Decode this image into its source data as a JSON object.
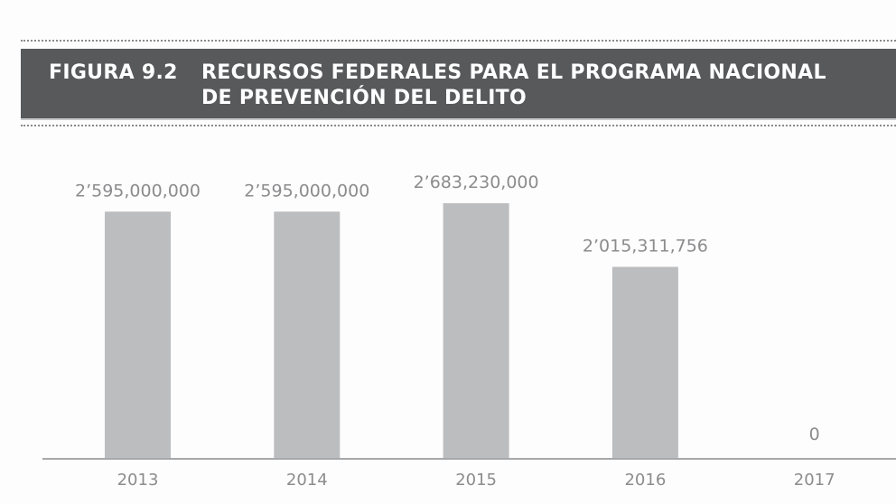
{
  "figure": {
    "label": "FIGURA 9.2",
    "title_line1": "RECURSOS FEDERALES PARA EL PROGRAMA NACIONAL",
    "title_line2": "DE PREVENCIÓN DEL DELITO"
  },
  "colors": {
    "header_bg": "#58595b",
    "header_text": "#ffffff",
    "bar": "#bcbdbf",
    "label_text": "#8c8c8e",
    "axis": "#a7a8aa"
  },
  "chart_data": {
    "type": "bar",
    "title": "FIGURA 9.2 RECURSOS FEDERALES PARA EL PROGRAMA NACIONAL DE PREVENCIÓN DEL DELITO",
    "xlabel": "",
    "ylabel": "",
    "categories": [
      "2013",
      "2014",
      "2015",
      "2016",
      "2017"
    ],
    "values": [
      2595000000,
      2595000000,
      2683230000,
      2015311756,
      0
    ],
    "data_labels": [
      "2’595,000,000",
      "2’595,000,000",
      "2’683,230,000",
      "2’015,311,756",
      "0"
    ],
    "ylim": [
      0,
      2683230000
    ],
    "grid": false,
    "legend": "none",
    "y_axis_visible": false
  }
}
